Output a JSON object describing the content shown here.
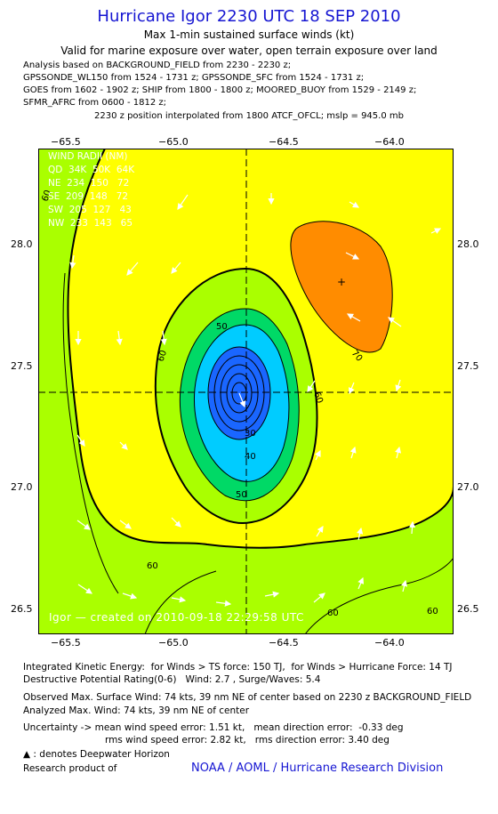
{
  "header": {
    "title": "Hurricane Igor 2230 UTC 18 SEP 2010",
    "subtitle": "Max 1-min sustained surface winds (kt)",
    "valid": "Valid for marine exposure over water, open terrain exposure over land",
    "analysis_lines": [
      "Analysis based on BACKGROUND_FIELD from 2230 - 2230 z;",
      "GPSSONDE_WL150 from 1524 - 1731 z; GPSSONDE_SFC from 1524 - 1731 z;",
      "GOES from 1602 - 1902 z; SHIP from 1800 - 1800 z; MOORED_BUOY from 1529 - 2149 z;",
      "SFMR_AFRC from 0600 - 1812 z;"
    ],
    "position_line": "2230 z position interpolated from 1800 ATCF_OFCL; mslp = 945.0 mb"
  },
  "axes": {
    "x_ticks": [
      "−65.5",
      "−65.0",
      "−64.5",
      "−64.0"
    ],
    "y_ticks": [
      "28.0",
      "27.5",
      "27.0",
      "26.5"
    ]
  },
  "wind_radii": {
    "header": "WIND RADII (NM)",
    "cols": "QD  34K  50K  64K",
    "rows": [
      "NE  234  150   72",
      "SE  209  148   72",
      "SW  205  127   43",
      "NW  233  143   65"
    ]
  },
  "contour_labels": [
    "60",
    "60",
    "60",
    "60",
    "60",
    "50",
    "50",
    "40",
    "30",
    "70",
    "60"
  ],
  "created": "Igor — created on 2010-09-18 22:29:58 UTC",
  "footer": {
    "ike": "Integrated Kinetic Energy:  for Winds > TS force: 150 TJ,  for Winds > Hurricane Force: 14 TJ",
    "dpr": "Destructive Potential Rating(0-6)   Wind: 2.7 , Surge/Waves: 5.4",
    "obs_max": "Observed Max. Surface Wind: 74 kts, 39 nm NE of center based on 2230 z BACKGROUND_FIELD",
    "an_max": "Analyzed Max. Wind: 74 kts, 39 nm NE of center",
    "unc1": "Uncertainty -> mean wind speed error: 1.51 kt,   mean direction error:  -0.33 deg",
    "unc2": "rms wind speed error: 2.82 kt,   rms direction error: 3.40 deg",
    "deepwater": ": denotes Deepwater Horizon",
    "research": "Research product of",
    "org": "NOAA / AOML / Hurricane Research Division"
  },
  "colors": {
    "lt40": "#1a66ff",
    "c40": "#00ccff",
    "c50": "#00d966",
    "c60": "#aaff00",
    "c70": "#ffff00",
    "c80": "#ff8c00",
    "title": "#1616d2"
  }
}
